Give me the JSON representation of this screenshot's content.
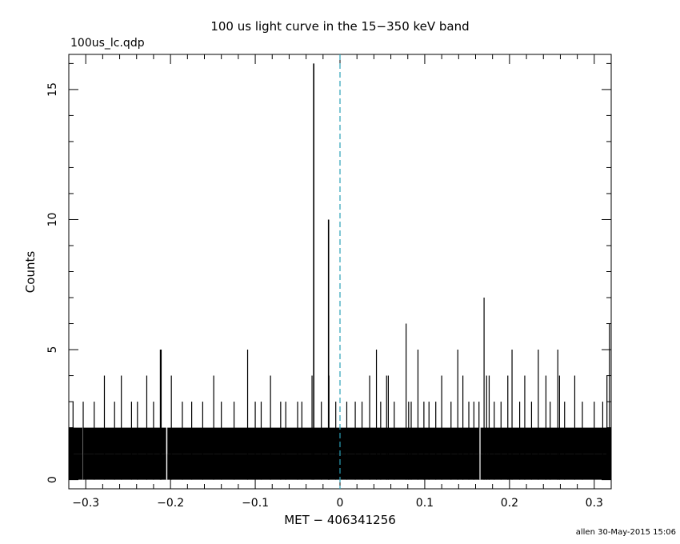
{
  "chart_data": {
    "type": "bar",
    "title": "100 us light curve in the 15−350 keV band",
    "subtitle": "100us_lc.qdp",
    "xlabel": "MET − 406341256",
    "ylabel": "Counts",
    "xlim": [
      -0.32,
      0.32
    ],
    "ylim": [
      -0.35,
      16.35
    ],
    "x_ticks": [
      -0.3,
      -0.2,
      -0.1,
      0,
      0.1,
      0.2,
      0.3
    ],
    "x_tick_labels": [
      "−0.3",
      "−0.2",
      "−0.1",
      "0",
      "0.1",
      "0.2",
      "0.3"
    ],
    "y_ticks": [
      0,
      5,
      10,
      15
    ],
    "y_tick_labels": [
      "0",
      "5",
      "10",
      "15"
    ],
    "bin_width": 0.0001,
    "baseline_counts": 1,
    "trigger_line_x": 0,
    "trigger_line_color": "#2aa0b8",
    "points": [
      {
        "x": -0.031,
        "y": 16
      },
      {
        "x": -0.0135,
        "y": 10
      },
      {
        "x": 0.17,
        "y": 7
      },
      {
        "x": 0.078,
        "y": 6
      },
      {
        "x": 0.318,
        "y": 6
      },
      {
        "x": -0.212,
        "y": 5
      },
      {
        "x": -0.211,
        "y": 5
      },
      {
        "x": -0.109,
        "y": 5
      },
      {
        "x": 0.043,
        "y": 5
      },
      {
        "x": 0.092,
        "y": 5
      },
      {
        "x": 0.139,
        "y": 5
      },
      {
        "x": 0.203,
        "y": 5
      },
      {
        "x": 0.234,
        "y": 5
      },
      {
        "x": 0.257,
        "y": 5
      },
      {
        "x": -0.278,
        "y": 4
      },
      {
        "x": -0.258,
        "y": 4
      },
      {
        "x": -0.228,
        "y": 4
      },
      {
        "x": -0.199,
        "y": 4
      },
      {
        "x": -0.149,
        "y": 4
      },
      {
        "x": -0.082,
        "y": 4
      },
      {
        "x": -0.033,
        "y": 4
      },
      {
        "x": -0.013,
        "y": 4
      },
      {
        "x": 0.035,
        "y": 4
      },
      {
        "x": 0.055,
        "y": 4
      },
      {
        "x": 0.057,
        "y": 4
      },
      {
        "x": 0.12,
        "y": 4
      },
      {
        "x": 0.145,
        "y": 4
      },
      {
        "x": 0.173,
        "y": 4
      },
      {
        "x": 0.176,
        "y": 4
      },
      {
        "x": 0.198,
        "y": 4
      },
      {
        "x": 0.218,
        "y": 4
      },
      {
        "x": 0.243,
        "y": 4
      },
      {
        "x": 0.259,
        "y": 4
      },
      {
        "x": 0.277,
        "y": 4
      },
      {
        "x": 0.315,
        "y": 4
      },
      {
        "x": -0.315,
        "y": 3
      },
      {
        "x": -0.303,
        "y": 3
      },
      {
        "x": -0.29,
        "y": 3
      },
      {
        "x": -0.266,
        "y": 3
      },
      {
        "x": -0.246,
        "y": 3
      },
      {
        "x": -0.239,
        "y": 3
      },
      {
        "x": -0.22,
        "y": 3
      },
      {
        "x": -0.186,
        "y": 3
      },
      {
        "x": -0.175,
        "y": 3
      },
      {
        "x": -0.162,
        "y": 3
      },
      {
        "x": -0.14,
        "y": 3
      },
      {
        "x": -0.125,
        "y": 3
      },
      {
        "x": -0.1,
        "y": 3
      },
      {
        "x": -0.093,
        "y": 3
      },
      {
        "x": -0.07,
        "y": 3
      },
      {
        "x": -0.064,
        "y": 3
      },
      {
        "x": -0.05,
        "y": 3
      },
      {
        "x": -0.045,
        "y": 3
      },
      {
        "x": -0.022,
        "y": 3
      },
      {
        "x": -0.005,
        "y": 3
      },
      {
        "x": 0.008,
        "y": 3
      },
      {
        "x": 0.018,
        "y": 3
      },
      {
        "x": 0.026,
        "y": 3
      },
      {
        "x": 0.048,
        "y": 3
      },
      {
        "x": 0.064,
        "y": 3
      },
      {
        "x": 0.081,
        "y": 3
      },
      {
        "x": 0.084,
        "y": 3
      },
      {
        "x": 0.099,
        "y": 3
      },
      {
        "x": 0.105,
        "y": 3
      },
      {
        "x": 0.113,
        "y": 3
      },
      {
        "x": 0.131,
        "y": 3
      },
      {
        "x": 0.152,
        "y": 3
      },
      {
        "x": 0.158,
        "y": 3
      },
      {
        "x": 0.164,
        "y": 3
      },
      {
        "x": 0.182,
        "y": 3
      },
      {
        "x": 0.19,
        "y": 3
      },
      {
        "x": 0.212,
        "y": 3
      },
      {
        "x": 0.226,
        "y": 3
      },
      {
        "x": 0.248,
        "y": 3
      },
      {
        "x": 0.265,
        "y": 3
      },
      {
        "x": 0.286,
        "y": 3
      },
      {
        "x": 0.3,
        "y": 3
      },
      {
        "x": 0.31,
        "y": 3
      }
    ],
    "grid": false,
    "legend": "none"
  },
  "footer": "allen 30-May-2015 15:06"
}
